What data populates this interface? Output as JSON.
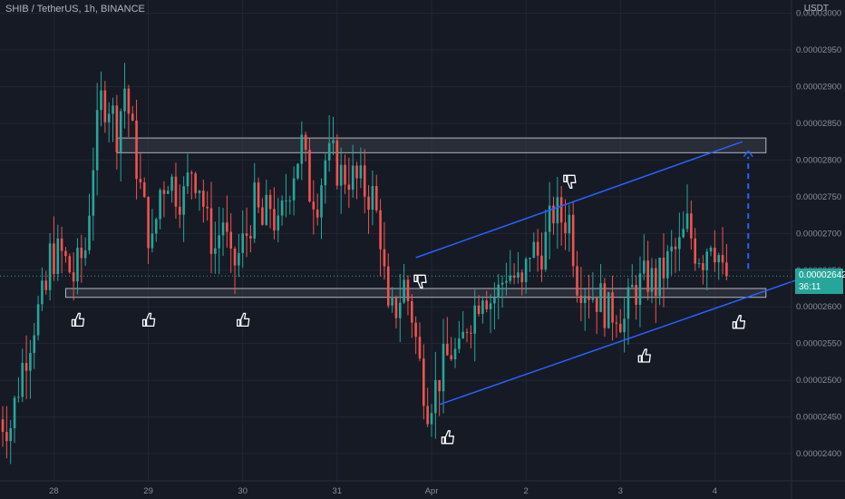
{
  "header": {
    "title": "SHIB / TetherUS, 1h, BINANCE",
    "currency": "USDT"
  },
  "price_tag": {
    "price": "0.00002642",
    "countdown": "36:11"
  },
  "colors": {
    "background": "#161a25",
    "up": "#26a69a",
    "down": "#ef5350",
    "channel": "#2962ff",
    "zone_fill": "#3a3e48",
    "zone_border": "#b2b5be",
    "grid": "#232733"
  },
  "icons": [
    "thumbs-up-icon",
    "thumbs-down-icon"
  ],
  "chart_data": {
    "type": "candlestick",
    "y_tick_labels": [
      "0.00003000",
      "0.00002950",
      "0.00002900",
      "0.00002850",
      "0.00002800",
      "0.00002750",
      "0.00002700",
      "0.00002650",
      "0.00002600",
      "0.00002550",
      "0.00002500",
      "0.00002450",
      "0.00002400"
    ],
    "y_ticks": [
      3e-05,
      2.95e-05,
      2.9e-05,
      2.85e-05,
      2.8e-05,
      2.75e-05,
      2.7e-05,
      2.65e-05,
      2.6e-05,
      2.55e-05,
      2.5e-05,
      2.45e-05,
      2.4e-05
    ],
    "ylim": [
      2.363e-05,
      3.018e-05
    ],
    "x_tick_labels": [
      "28",
      "29",
      "30",
      "31",
      "Apr",
      "2",
      "3",
      "4"
    ],
    "x_ticks": [
      24,
      48,
      72,
      96,
      120,
      144,
      168,
      192
    ],
    "xlim": [
      10.3,
      211.5
    ],
    "last_price": 2.642e-05,
    "resistance_zone": [
      2.81e-05,
      2.83e-05
    ],
    "support_zone": [
      2.613e-05,
      2.625e-05
    ],
    "ascending_channel": {
      "lower": [
        [
          122,
          2.467e-05
        ],
        [
          213,
          2.637e-05
        ]
      ],
      "upper": [
        [
          116,
          2.667e-05
        ],
        [
          199,
          2.825e-05
        ]
      ]
    },
    "projection": {
      "from": [
        200.5,
        2.652e-05
      ],
      "to": [
        200.5,
        2.812e-05
      ]
    },
    "markers": [
      {
        "type": "thumbs-up",
        "x": 30,
        "price": 2.585e-05
      },
      {
        "type": "thumbs-up",
        "x": 48,
        "price": 2.585e-05
      },
      {
        "type": "thumbs-up",
        "x": 72,
        "price": 2.585e-05
      },
      {
        "type": "thumbs-down",
        "x": 117,
        "price": 2.632e-05
      },
      {
        "type": "thumbs-up",
        "x": 124,
        "price": 2.425e-05
      },
      {
        "type": "thumbs-down",
        "x": 155,
        "price": 2.768e-05
      },
      {
        "type": "thumbs-up",
        "x": 174,
        "price": 2.536e-05
      },
      {
        "type": "thumbs-up",
        "x": 198,
        "price": 2.582e-05
      }
    ],
    "keypoints": [
      [
        10,
        2.45e-05
      ],
      [
        14,
        2.44e-05
      ],
      [
        17,
        2.52e-05
      ],
      [
        20,
        2.58e-05
      ],
      [
        23,
        2.62e-05
      ],
      [
        24,
        2.67e-05
      ],
      [
        27,
        2.67e-05
      ],
      [
        30,
        2.64e-05
      ],
      [
        33,
        2.68e-05
      ],
      [
        35,
        2.8e-05
      ],
      [
        37,
        2.88e-05
      ],
      [
        39,
        2.88e-05
      ],
      [
        41,
        2.84e-05
      ],
      [
        43,
        2.9e-05
      ],
      [
        45,
        2.83e-05
      ],
      [
        47,
        2.76e-05
      ],
      [
        48,
        2.73e-05
      ],
      [
        50,
        2.68e-05
      ],
      [
        52,
        2.76e-05
      ],
      [
        54,
        2.78e-05
      ],
      [
        56,
        2.76e-05
      ],
      [
        58,
        2.75e-05
      ],
      [
        60,
        2.79e-05
      ],
      [
        62,
        2.77e-05
      ],
      [
        64,
        2.71e-05
      ],
      [
        66,
        2.68e-05
      ],
      [
        68,
        2.72e-05
      ],
      [
        70,
        2.65e-05
      ],
      [
        72,
        2.67e-05
      ],
      [
        74,
        2.7e-05
      ],
      [
        76,
        2.74e-05
      ],
      [
        78,
        2.71e-05
      ],
      [
        80,
        2.74e-05
      ],
      [
        82,
        2.7e-05
      ],
      [
        84,
        2.75e-05
      ],
      [
        86,
        2.79e-05
      ],
      [
        88,
        2.82e-05
      ],
      [
        90,
        2.76e-05
      ],
      [
        92,
        2.75e-05
      ],
      [
        94,
        2.8e-05
      ],
      [
        96,
        2.8e-05
      ],
      [
        98,
        2.78e-05
      ],
      [
        100,
        2.78e-05
      ],
      [
        102,
        2.77e-05
      ],
      [
        104,
        2.76e-05
      ],
      [
        106,
        2.75e-05
      ],
      [
        108,
        2.7e-05
      ],
      [
        110,
        2.58e-05
      ],
      [
        112,
        2.6e-05
      ],
      [
        114,
        2.63e-05
      ],
      [
        116,
        2.59e-05
      ],
      [
        118,
        2.52e-05
      ],
      [
        120,
        2.47e-05
      ],
      [
        122,
        2.49e-05
      ],
      [
        124,
        2.52e-05
      ],
      [
        126,
        2.54e-05
      ],
      [
        128,
        2.53e-05
      ],
      [
        130,
        2.58e-05
      ],
      [
        132,
        2.6e-05
      ],
      [
        134,
        2.63e-05
      ],
      [
        136,
        2.61e-05
      ],
      [
        138,
        2.62e-05
      ],
      [
        140,
        2.65e-05
      ],
      [
        142,
        2.64e-05
      ],
      [
        144,
        2.62e-05
      ],
      [
        146,
        2.68e-05
      ],
      [
        148,
        2.67e-05
      ],
      [
        150,
        2.69e-05
      ],
      [
        152,
        2.73e-05
      ],
      [
        154,
        2.72e-05
      ],
      [
        156,
        2.72e-05
      ],
      [
        158,
        2.64e-05
      ],
      [
        160,
        2.63e-05
      ],
      [
        162,
        2.62e-05
      ],
      [
        164,
        2.61e-05
      ],
      [
        166,
        2.59e-05
      ],
      [
        168,
        2.6e-05
      ],
      [
        170,
        2.58e-05
      ],
      [
        172,
        2.62e-05
      ],
      [
        174,
        2.63e-05
      ],
      [
        176,
        2.64e-05
      ],
      [
        178,
        2.63e-05
      ],
      [
        180,
        2.65e-05
      ],
      [
        182,
        2.67e-05
      ],
      [
        184,
        2.68e-05
      ],
      [
        186,
        2.71e-05
      ],
      [
        188,
        2.68e-05
      ],
      [
        190,
        2.67e-05
      ],
      [
        192,
        2.7e-05
      ],
      [
        194,
        2.67e-05
      ],
      [
        195,
        2.64e-05
      ]
    ]
  }
}
